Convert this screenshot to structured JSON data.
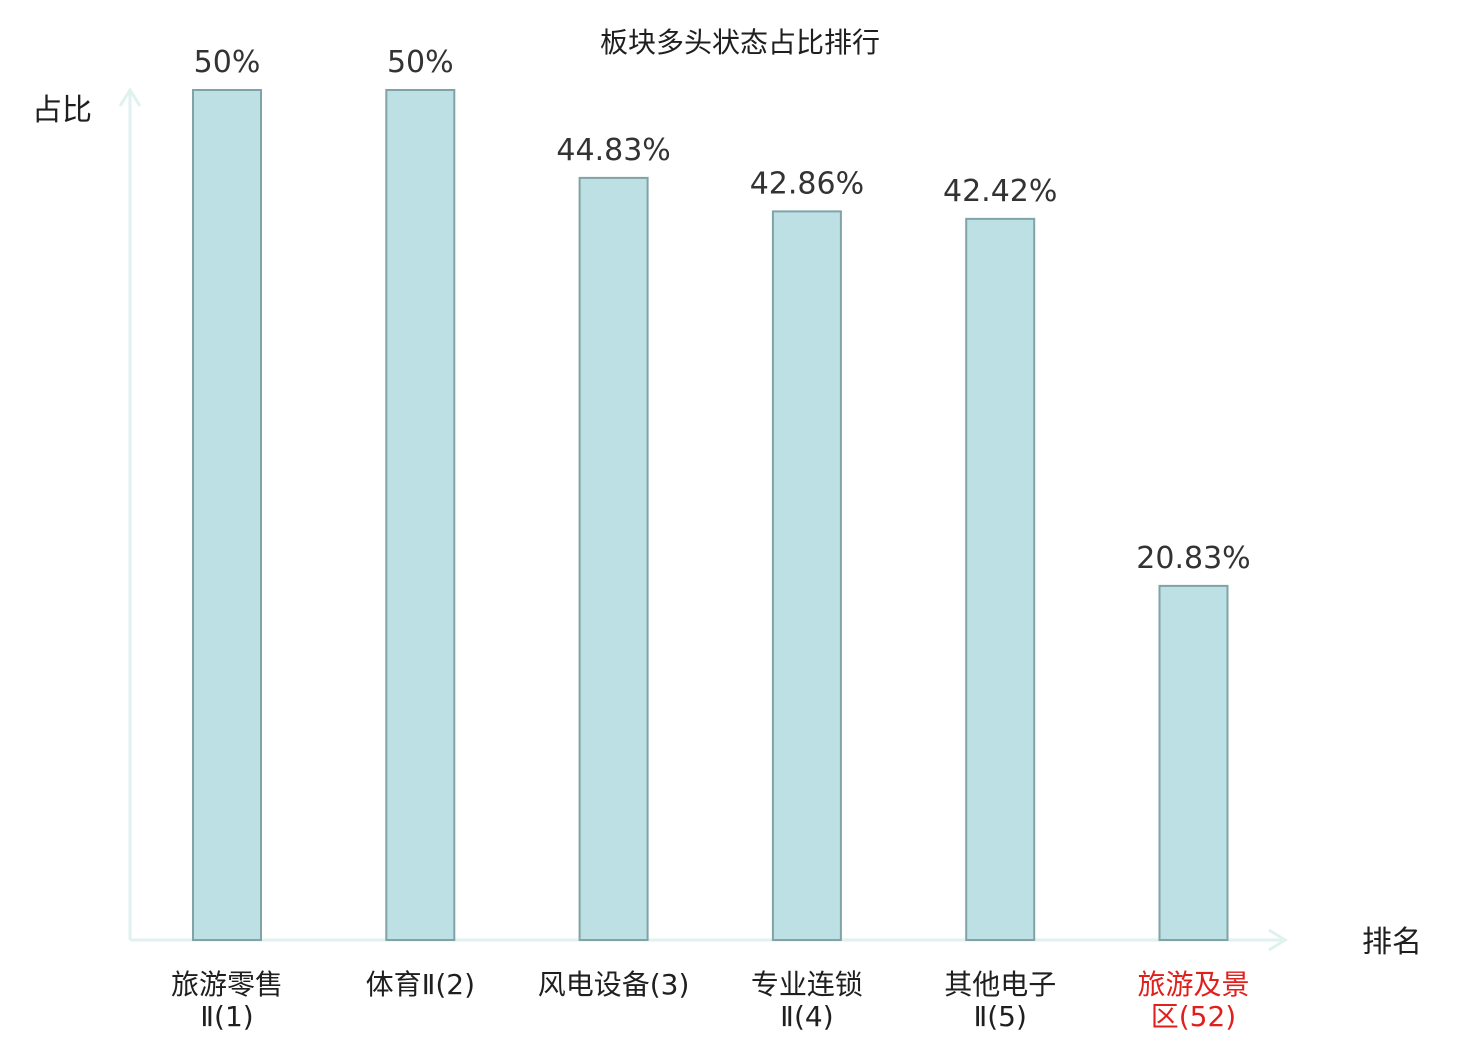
{
  "chart_data": {
    "type": "bar",
    "title": "板块多头状态占比排行",
    "xlabel": "排名",
    "ylabel": "占比",
    "ylim": [
      0,
      50
    ],
    "categories": [
      [
        "旅游零售",
        "Ⅱ(1)"
      ],
      [
        "体育Ⅱ(2)"
      ],
      [
        "风电设备(3)"
      ],
      [
        "专业连锁",
        "Ⅱ(4)"
      ],
      [
        "其他电子",
        "Ⅱ(5)"
      ],
      [
        "旅游及景",
        "区(52)"
      ]
    ],
    "values": [
      50,
      50,
      44.83,
      42.86,
      42.42,
      20.83
    ],
    "value_labels": [
      "50%",
      "50%",
      "44.83%",
      "42.86%",
      "42.42%",
      "20.83%"
    ],
    "highlight_index": 5,
    "colors": {
      "bar_fill": "#bce0e3",
      "bar_stroke": "#7fa3a6",
      "axis": "#dff2ef",
      "highlight_text": "#e0201c",
      "text": "#1f1f1f",
      "value_text": "#333333"
    },
    "grid": false,
    "legend": "none"
  }
}
